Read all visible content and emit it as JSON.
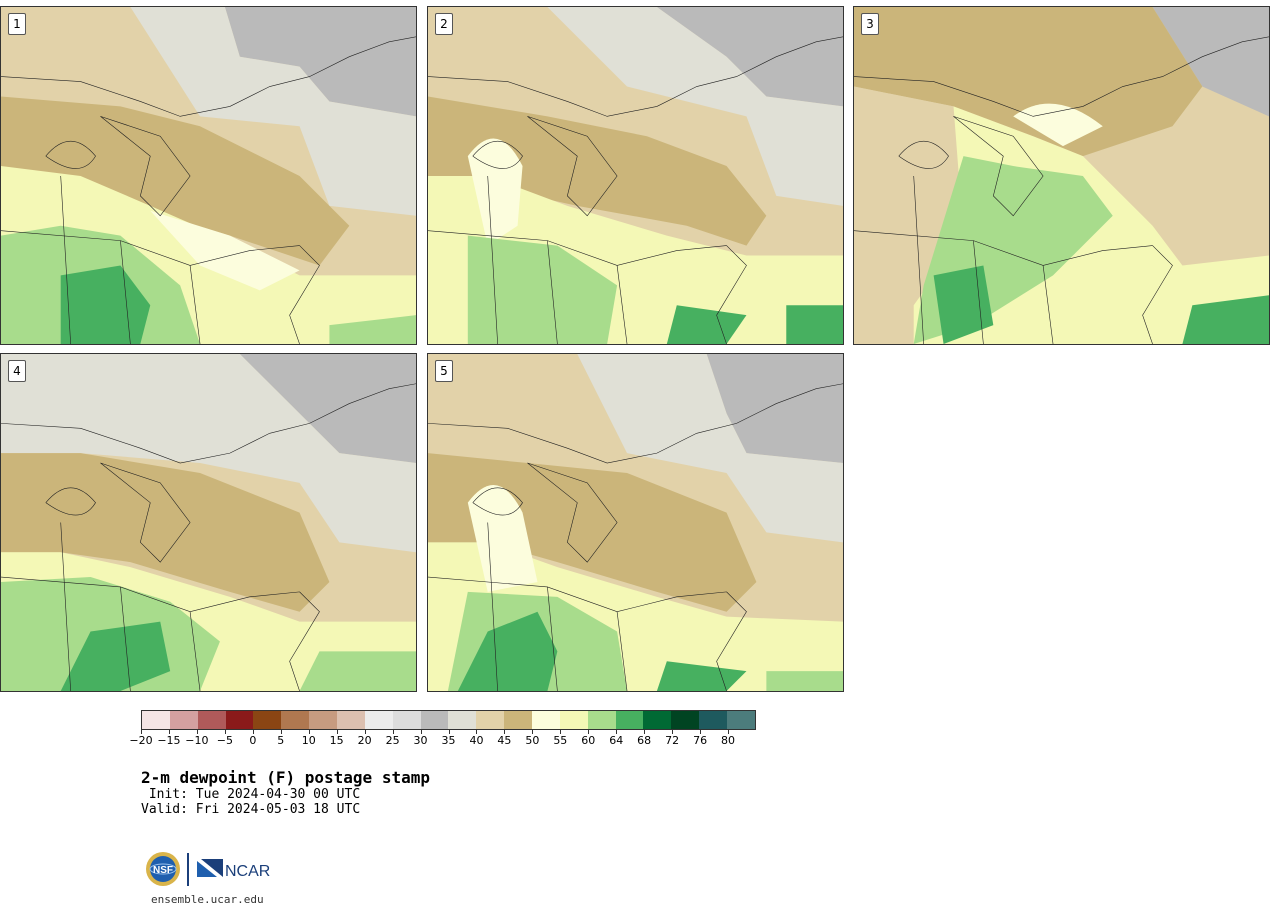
{
  "figure": {
    "title": "2-m dewpoint (F) postage stamp",
    "init": " Init: Tue 2024-04-30 00 UTC",
    "valid": "Valid: Fri 2024-05-03 18 UTC",
    "footer": "ensemble.ucar.edu",
    "logos": [
      "NSF",
      "NCAR"
    ]
  },
  "panels": [
    {
      "label": "1"
    },
    {
      "label": "2"
    },
    {
      "label": "3"
    },
    {
      "label": "4"
    },
    {
      "label": "5"
    }
  ],
  "colorbar": {
    "colors": [
      "#f5e6e6",
      "#d4a0a0",
      "#b05a5a",
      "#8b1a1a",
      "#8b4513",
      "#b07850",
      "#c79b80",
      "#dcc0b0",
      "#ececec",
      "#dcdcdc",
      "#bababa",
      "#e0e0d6",
      "#e2d2a9",
      "#cbb57a",
      "#fcfddd",
      "#f4f8b6",
      "#a8dc8c",
      "#47b060",
      "#006a34",
      "#004422",
      "#1e5a5e",
      "#4c7c7c"
    ],
    "ticks": [
      "−20",
      "−15",
      "−10",
      "−5",
      "0",
      "5",
      "10",
      "15",
      "20",
      "25",
      "30",
      "35",
      "40",
      "45",
      "50",
      "55",
      "60",
      "64",
      "68",
      "72",
      "76",
      "80"
    ]
  }
}
